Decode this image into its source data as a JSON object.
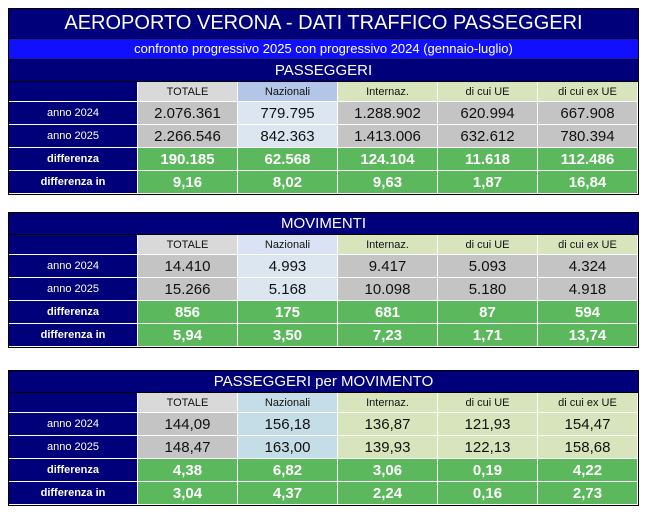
{
  "header": {
    "title": "AEROPORTO VERONA - DATI TRAFFICO PASSEGGERI",
    "subtitle": "confronto progressivo 2025 con progressivo 2024 (gennaio-luglio)"
  },
  "sections": [
    {
      "title": "PASSEGGERI",
      "columns": [
        "TOTALE",
        "Nazionali",
        "Internaz.",
        "di cui UE",
        "di cui ex UE"
      ],
      "rows": [
        {
          "label": "anno 2024",
          "cells": [
            "2.076.361",
            "779.795",
            "1.288.902",
            "620.994",
            "667.908"
          ]
        },
        {
          "label": "anno 2025",
          "cells": [
            "2.266.546",
            "842.363",
            "1.413.006",
            "632.612",
            "780.394"
          ]
        },
        {
          "label": "differenza",
          "cells": [
            "190.185",
            "62.568",
            "124.104",
            "11.618",
            "112.486"
          ]
        },
        {
          "label": "differenza in percentuale",
          "cells": [
            "9,16",
            "8,02",
            "9,63",
            "1,87",
            "16,84"
          ]
        }
      ]
    },
    {
      "title": "MOVIMENTI",
      "columns": [
        "TOTALE",
        "Nazionali",
        "Internaz.",
        "di cui UE",
        "di cui ex UE"
      ],
      "rows": [
        {
          "label": "anno 2024",
          "cells": [
            "14.410",
            "4.993",
            "9.417",
            "5.093",
            "4.324"
          ]
        },
        {
          "label": "anno 2025",
          "cells": [
            "15.266",
            "5.168",
            "10.098",
            "5.180",
            "4.918"
          ]
        },
        {
          "label": "differenza",
          "cells": [
            "856",
            "175",
            "681",
            "87",
            "594"
          ]
        },
        {
          "label": "differenza in percentuale",
          "cells": [
            "5,94",
            "3,50",
            "7,23",
            "1,71",
            "13,74"
          ]
        }
      ]
    },
    {
      "title": "PASSEGGERI per MOVIMENTO",
      "columns": [
        "TOTALE",
        "Nazionali",
        "Internaz.",
        "di cui UE",
        "di cui ex UE"
      ],
      "rows": [
        {
          "label": "anno 2024",
          "cells": [
            "144,09",
            "156,18",
            "136,87",
            "121,93",
            "154,47"
          ]
        },
        {
          "label": "anno 2025",
          "cells": [
            "148,47",
            "163,00",
            "139,93",
            "122,13",
            "158,68"
          ]
        },
        {
          "label": "differenza",
          "cells": [
            "4,38",
            "6,82",
            "3,06",
            "0,19",
            "4,22"
          ]
        },
        {
          "label": "differenza in percentuale",
          "cells": [
            "3,04",
            "4,37",
            "2,24",
            "0,16",
            "2,73"
          ]
        }
      ]
    }
  ]
}
